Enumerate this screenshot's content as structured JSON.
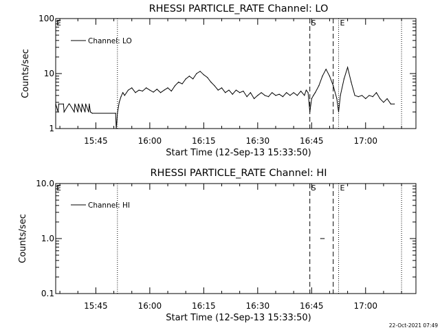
{
  "footer": {
    "timestamp": "22-Oct-2021 07:49"
  },
  "chart_data": [
    {
      "type": "line",
      "title": "RHESSI PARTICLE_RATE Channel: LO",
      "xlabel": "Start Time (12-Sep-13 15:33:50)",
      "ylabel": "Counts/sec",
      "yscale": "log",
      "ylim": [
        1,
        100
      ],
      "yticks": [
        1,
        10,
        100
      ],
      "ytick_labels": [
        "1",
        "10",
        "100"
      ],
      "xlim": [
        "15:33:50",
        "17:14:00"
      ],
      "xticks": [
        "15:45",
        "16:00",
        "16:15",
        "16:30",
        "16:45",
        "17:00"
      ],
      "legend": {
        "label": "Channel: LO",
        "position": "top-left"
      },
      "markers": [
        {
          "time": "15:51:00",
          "style": "dotted",
          "label": ""
        },
        {
          "time": "16:44:30",
          "style": "dashed",
          "label": "S"
        },
        {
          "time": "16:51:00",
          "style": "dashed",
          "label": ""
        },
        {
          "time": "16:52:30",
          "style": "dotted",
          "label": "E"
        },
        {
          "time": "17:10:00",
          "style": "dotted",
          "label": ""
        }
      ],
      "corner_labels": [
        "E"
      ],
      "series": [
        {
          "name": "Channel: LO",
          "x": [
            "15:33:50",
            "15:34:30",
            "15:34:40",
            "15:36:00",
            "15:36:10",
            "15:37:30",
            "15:37:40",
            "15:39:00",
            "15:39:10",
            "15:40:00",
            "15:40:10",
            "15:41:00",
            "15:41:10",
            "15:42:00",
            "15:42:10",
            "15:43:00",
            "15:43:10",
            "15:43:30",
            "15:44:00",
            "15:50:30",
            "15:50:40",
            "15:51:00",
            "15:51:30",
            "15:52:00",
            "15:52:30",
            "15:53:00",
            "15:54:00",
            "15:55:00",
            "15:56:00",
            "15:57:00",
            "15:58:00",
            "15:59:00",
            "16:00:00",
            "16:01:00",
            "16:02:00",
            "16:03:00",
            "16:04:00",
            "16:05:00",
            "16:06:00",
            "16:07:00",
            "16:08:00",
            "16:09:00",
            "16:10:00",
            "16:11:00",
            "16:12:00",
            "16:13:00",
            "16:14:00",
            "16:15:00",
            "16:16:00",
            "16:17:00",
            "16:18:00",
            "16:19:00",
            "16:20:00",
            "16:21:00",
            "16:22:00",
            "16:23:00",
            "16:24:00",
            "16:25:00",
            "16:26:00",
            "16:27:00",
            "16:28:00",
            "16:29:00",
            "16:30:00",
            "16:31:00",
            "16:32:00",
            "16:33:00",
            "16:34:00",
            "16:35:00",
            "16:36:00",
            "16:37:00",
            "16:38:00",
            "16:39:00",
            "16:40:00",
            "16:41:00",
            "16:42:00",
            "16:43:00",
            "16:43:30",
            "16:44:00",
            "16:44:30",
            "16:45:00",
            "16:45:30",
            "16:46:00",
            "16:47:00",
            "16:48:00",
            "16:49:00",
            "16:50:00",
            "16:51:00",
            "16:52:00",
            "16:52:30",
            "16:53:00",
            "16:54:00",
            "16:55:00",
            "16:56:00",
            "16:57:00",
            "16:58:00",
            "16:59:00",
            "17:00:00",
            "17:01:00",
            "17:02:00",
            "17:03:00",
            "17:04:00",
            "17:05:00",
            "17:06:00",
            "17:07:00",
            "17:08:00"
          ],
          "y": [
            2.8,
            2.0,
            2.8,
            2.8,
            2.0,
            2.8,
            2.8,
            2.0,
            2.8,
            2.0,
            2.8,
            2.0,
            2.8,
            2.0,
            2.8,
            2.0,
            2.8,
            2.0,
            1.9,
            1.9,
            1.0,
            1.9,
            3.0,
            3.8,
            4.5,
            4.0,
            5.0,
            5.5,
            4.5,
            5.0,
            4.8,
            5.5,
            5.0,
            4.6,
            5.2,
            4.5,
            5.0,
            5.5,
            4.8,
            6.0,
            7.0,
            6.5,
            8.0,
            9.0,
            8.0,
            10.0,
            11.0,
            9.5,
            8.5,
            7.0,
            6.0,
            5.0,
            5.5,
            4.5,
            5.0,
            4.2,
            5.0,
            4.5,
            4.8,
            3.8,
            4.5,
            3.5,
            4.0,
            4.5,
            4.0,
            3.8,
            4.5,
            4.0,
            4.2,
            3.8,
            4.5,
            4.0,
            4.5,
            4.0,
            4.8,
            4.0,
            5.0,
            4.5,
            2.0,
            3.5,
            4.0,
            4.5,
            6.0,
            9.0,
            12.0,
            9.0,
            6.0,
            3.5,
            2.0,
            4.0,
            8.0,
            13.0,
            7.0,
            4.0,
            3.8,
            4.0,
            3.5,
            4.0,
            3.8,
            4.5,
            3.5,
            3.0,
            3.5,
            2.8,
            2.8
          ]
        }
      ]
    },
    {
      "type": "line",
      "title": "RHESSI PARTICLE_RATE Channel: HI",
      "xlabel": "Start Time (12-Sep-13 15:33:50)",
      "ylabel": "Counts/sec",
      "yscale": "log",
      "ylim": [
        0.1,
        10
      ],
      "yticks": [
        0.1,
        1,
        10
      ],
      "ytick_labels": [
        "0.1",
        "1.0",
        "10.0"
      ],
      "xlim": [
        "15:33:50",
        "17:14:00"
      ],
      "xticks": [
        "15:45",
        "16:00",
        "16:15",
        "16:30",
        "16:45",
        "17:00"
      ],
      "legend": {
        "label": "Channel: HI",
        "position": "top-left"
      },
      "markers": [
        {
          "time": "15:51:00",
          "style": "dotted",
          "label": ""
        },
        {
          "time": "16:44:30",
          "style": "dashed",
          "label": "S"
        },
        {
          "time": "16:51:00",
          "style": "dashed",
          "label": ""
        },
        {
          "time": "16:52:30",
          "style": "dotted",
          "label": "E"
        },
        {
          "time": "17:10:00",
          "style": "dotted",
          "label": ""
        }
      ],
      "corner_labels": [
        "E"
      ],
      "series": [
        {
          "name": "Channel: HI",
          "x": [
            "16:47:30",
            "16:48:30"
          ],
          "y": [
            1.0,
            1.0
          ]
        }
      ]
    }
  ]
}
